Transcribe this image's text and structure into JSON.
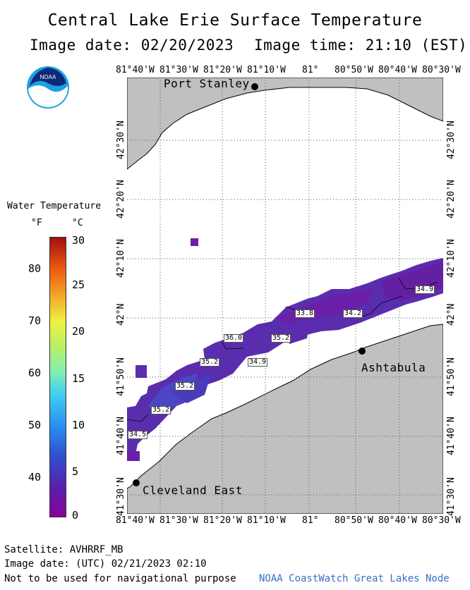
{
  "header": {
    "title": "Central Lake Erie Surface Temperature",
    "image_date": "Image date: 02/20/2023",
    "image_time": "Image time: 21:10 (EST)"
  },
  "logo": {
    "text": "NOAA",
    "icon": "noaa-logo-icon"
  },
  "map": {
    "lon_ticks": [
      "81°40'W",
      "81°30'W",
      "81°20'W",
      "81°10'W",
      "81°",
      "80°50'W",
      "80°40'W",
      "80°30'W"
    ],
    "lat_ticks": [
      "41°30'N",
      "41°40'N",
      "41°50'N",
      "42°N",
      "42°10'N",
      "42°20'N",
      "42°30'N"
    ],
    "places": {
      "port_stanley": "Port Stanley",
      "ashtabula": "Ashtabula",
      "cleveland_east": "Cleveland East"
    },
    "values": [
      "34.5",
      "35.2",
      "35.2",
      "35.2",
      "34.9",
      "36.0",
      "35.2",
      "33.8",
      "34.2",
      "34.9"
    ],
    "colors": {
      "land": "#c0c0c0",
      "water": "#ffffff",
      "cold": "#6a1fa8",
      "cool": "#4a3cb8"
    }
  },
  "legend": {
    "title": "Water Temperature",
    "unit_f": "°F",
    "unit_c": "°C",
    "f_labels": [
      "80",
      "70",
      "60",
      "50",
      "40"
    ],
    "c_labels": [
      "30",
      "25",
      "20",
      "15",
      "10",
      "5",
      "0"
    ]
  },
  "footer": {
    "satellite": "Satellite: AVHRRF_MB",
    "utc_date": "Image date: (UTC) 02/21/2023  02:10",
    "disclaimer": "Not to be used for navigational purpose",
    "credit": "NOAA CoastWatch Great Lakes Node"
  }
}
